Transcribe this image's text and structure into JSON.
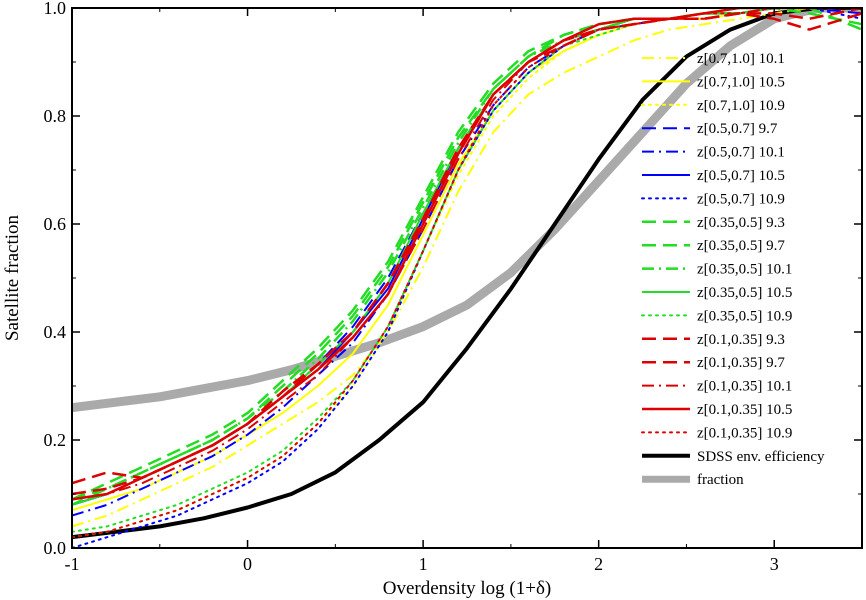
{
  "chart_data": {
    "type": "line",
    "title": "",
    "xlabel": "Overdensity log (1+δ)",
    "ylabel": "Satellite fraction",
    "xlim": [
      -1,
      3.5
    ],
    "ylim": [
      0,
      1
    ],
    "xticks": [
      -1,
      0,
      1,
      2,
      3
    ],
    "yticks": [
      0.0,
      0.2,
      0.4,
      0.6,
      0.8,
      1.0
    ],
    "ytick_labels": [
      "0.0",
      "0.2",
      "0.4",
      "0.6",
      "0.8",
      "1.0"
    ],
    "grid": false,
    "legend": "right",
    "series": [
      {
        "name": "z[0.7,1.0] 10.1",
        "color": "#ffff00",
        "dash": "dashdot",
        "width": 2,
        "x": [
          -1,
          -0.8,
          -0.6,
          -0.4,
          -0.2,
          0,
          0.2,
          0.4,
          0.6,
          0.8,
          1.0,
          1.2,
          1.4,
          1.6,
          1.8,
          2.0,
          2.2,
          2.4,
          2.6,
          2.8,
          3.0,
          3.2,
          3.5
        ],
        "y": [
          0.04,
          0.06,
          0.09,
          0.12,
          0.15,
          0.19,
          0.23,
          0.27,
          0.32,
          0.4,
          0.52,
          0.66,
          0.77,
          0.84,
          0.88,
          0.91,
          0.94,
          0.96,
          0.97,
          0.98,
          0.99,
          1.0,
          1.0
        ]
      },
      {
        "name": "z[0.7,1.0] 10.5",
        "color": "#ffff00",
        "dash": "solid",
        "width": 2,
        "x": [
          -1,
          -0.8,
          -0.6,
          -0.4,
          -0.2,
          0,
          0.2,
          0.4,
          0.6,
          0.8,
          1.0,
          1.2,
          1.4,
          1.6,
          1.8,
          2.0,
          2.2,
          2.4,
          2.6,
          2.8,
          3.0,
          3.2,
          3.5
        ],
        "y": [
          0.07,
          0.09,
          0.11,
          0.14,
          0.17,
          0.21,
          0.25,
          0.3,
          0.36,
          0.45,
          0.58,
          0.71,
          0.81,
          0.88,
          0.92,
          0.95,
          0.97,
          0.98,
          0.98,
          0.99,
          1.0,
          1.0,
          1.0
        ]
      },
      {
        "name": "z[0.7,1.0] 10.9",
        "color": "#ffff00",
        "dash": "dot",
        "width": 2,
        "x": [
          -1,
          -0.8,
          -0.6,
          -0.4,
          -0.2,
          0,
          0.2,
          0.4,
          0.6,
          0.8,
          1.0,
          1.2,
          1.4,
          1.6,
          1.8,
          2.0,
          2.2,
          2.4,
          2.6,
          2.8,
          3.0,
          3.2,
          3.5
        ],
        "y": [
          0.02,
          0.03,
          0.05,
          0.07,
          0.1,
          0.13,
          0.17,
          0.23,
          0.3,
          0.4,
          0.55,
          0.69,
          0.8,
          0.87,
          0.92,
          0.95,
          0.97,
          0.98,
          0.98,
          0.99,
          1.0,
          1.0,
          1.0
        ]
      },
      {
        "name": "z[0.5,0.7] 9.7",
        "color": "#0000ff",
        "dash": "dash",
        "width": 2,
        "x": [
          -1,
          -0.8,
          -0.6,
          -0.4,
          -0.2,
          0,
          0.2,
          0.4,
          0.6,
          0.8,
          1.0,
          1.2,
          1.4,
          1.6,
          1.8,
          2.0,
          2.2,
          2.4,
          2.6,
          2.8,
          3.0,
          3.2,
          3.5
        ],
        "y": [
          0.08,
          0.1,
          0.13,
          0.16,
          0.19,
          0.23,
          0.28,
          0.34,
          0.41,
          0.5,
          0.62,
          0.74,
          0.84,
          0.9,
          0.94,
          0.96,
          0.98,
          0.98,
          0.99,
          0.99,
          1.0,
          1.0,
          0.99
        ]
      },
      {
        "name": "z[0.5,0.7] 10.1",
        "color": "#0000ff",
        "dash": "dashdot",
        "width": 2,
        "x": [
          -1,
          -0.8,
          -0.6,
          -0.4,
          -0.2,
          0,
          0.2,
          0.4,
          0.6,
          0.8,
          1.0,
          1.2,
          1.4,
          1.6,
          1.8,
          2.0,
          2.2,
          2.4,
          2.6,
          2.8,
          3.0,
          3.2,
          3.5
        ],
        "y": [
          0.06,
          0.08,
          0.11,
          0.14,
          0.17,
          0.21,
          0.26,
          0.32,
          0.38,
          0.47,
          0.59,
          0.72,
          0.82,
          0.89,
          0.93,
          0.96,
          0.97,
          0.98,
          0.99,
          0.99,
          1.0,
          1.0,
          1.0
        ]
      },
      {
        "name": "z[0.5,0.7] 10.5",
        "color": "#0000ff",
        "dash": "solid",
        "width": 2,
        "x": [
          -1,
          -0.8,
          -0.6,
          -0.4,
          -0.2,
          0,
          0.2,
          0.4,
          0.6,
          0.8,
          1.0,
          1.2,
          1.4,
          1.6,
          1.8,
          2.0,
          2.2,
          2.4,
          2.6,
          2.8,
          3.0,
          3.2,
          3.5
        ],
        "y": [
          0.08,
          0.1,
          0.13,
          0.16,
          0.19,
          0.23,
          0.28,
          0.33,
          0.4,
          0.48,
          0.61,
          0.74,
          0.84,
          0.9,
          0.94,
          0.96,
          0.98,
          0.98,
          0.99,
          0.99,
          1.0,
          1.0,
          1.0
        ]
      },
      {
        "name": "z[0.5,0.7] 10.9",
        "color": "#0000ff",
        "dash": "dot",
        "width": 2,
        "x": [
          -1,
          -0.8,
          -0.6,
          -0.4,
          -0.2,
          0,
          0.2,
          0.4,
          0.6,
          0.8,
          1.0,
          1.2,
          1.4,
          1.6,
          1.8,
          2.0,
          2.2,
          2.4,
          2.6,
          2.8,
          3.0,
          3.2,
          3.5
        ],
        "y": [
          0.0,
          0.02,
          0.04,
          0.06,
          0.09,
          0.12,
          0.16,
          0.22,
          0.3,
          0.4,
          0.55,
          0.7,
          0.81,
          0.88,
          0.93,
          0.96,
          0.97,
          0.98,
          0.99,
          0.99,
          1.0,
          1.0,
          0.98
        ]
      },
      {
        "name": "z[0.35,0.5] 9.3",
        "color": "#22dd22",
        "dash": "dash",
        "width": 2.5,
        "x": [
          -1,
          -0.8,
          -0.6,
          -0.4,
          -0.2,
          0,
          0.2,
          0.4,
          0.6,
          0.8,
          1.0,
          1.2,
          1.4,
          1.6,
          1.8,
          2.0,
          2.2,
          2.4,
          2.6,
          2.8,
          3.0,
          3.2,
          3.5
        ],
        "y": [
          0.09,
          0.12,
          0.15,
          0.18,
          0.21,
          0.25,
          0.31,
          0.37,
          0.44,
          0.53,
          0.65,
          0.77,
          0.86,
          0.92,
          0.95,
          0.97,
          0.98,
          0.98,
          0.99,
          0.99,
          1.0,
          1.0,
          0.96
        ]
      },
      {
        "name": "z[0.35,0.5] 9.7",
        "color": "#22dd22",
        "dash": "dash",
        "width": 2.5,
        "x": [
          -1,
          -0.8,
          -0.6,
          -0.4,
          -0.2,
          0,
          0.2,
          0.4,
          0.6,
          0.8,
          1.0,
          1.2,
          1.4,
          1.6,
          1.8,
          2.0,
          2.2,
          2.4,
          2.6,
          2.8,
          3.0,
          3.2,
          3.5
        ],
        "y": [
          0.09,
          0.11,
          0.14,
          0.17,
          0.2,
          0.24,
          0.3,
          0.36,
          0.43,
          0.52,
          0.64,
          0.76,
          0.85,
          0.91,
          0.95,
          0.97,
          0.98,
          0.98,
          0.99,
          0.99,
          1.0,
          0.99,
          0.97
        ]
      },
      {
        "name": "z[0.35,0.5] 10.1",
        "color": "#22dd22",
        "dash": "dashdot",
        "width": 2.5,
        "x": [
          -1,
          -0.8,
          -0.6,
          -0.4,
          -0.2,
          0,
          0.2,
          0.4,
          0.6,
          0.8,
          1.0,
          1.2,
          1.4,
          1.6,
          1.8,
          2.0,
          2.2,
          2.4,
          2.6,
          2.8,
          3.0,
          3.2,
          3.5
        ],
        "y": [
          0.08,
          0.11,
          0.14,
          0.17,
          0.2,
          0.24,
          0.29,
          0.35,
          0.42,
          0.51,
          0.63,
          0.75,
          0.85,
          0.91,
          0.94,
          0.96,
          0.98,
          0.98,
          0.99,
          0.99,
          1.0,
          1.0,
          1.0
        ]
      },
      {
        "name": "z[0.35,0.5] 10.5",
        "color": "#22dd22",
        "dash": "solid",
        "width": 2,
        "x": [
          -1,
          -0.8,
          -0.6,
          -0.4,
          -0.2,
          0,
          0.2,
          0.4,
          0.6,
          0.8,
          1.0,
          1.2,
          1.4,
          1.6,
          1.8,
          2.0,
          2.2,
          2.4,
          2.6,
          2.8,
          3.0,
          3.2,
          3.5
        ],
        "y": [
          0.08,
          0.1,
          0.13,
          0.16,
          0.19,
          0.23,
          0.28,
          0.34,
          0.4,
          0.49,
          0.62,
          0.74,
          0.84,
          0.9,
          0.94,
          0.96,
          0.98,
          0.98,
          0.99,
          0.99,
          1.0,
          1.0,
          1.0
        ]
      },
      {
        "name": "z[0.35,0.5] 10.9",
        "color": "#22dd22",
        "dash": "dot",
        "width": 2,
        "x": [
          -1,
          -0.8,
          -0.6,
          -0.4,
          -0.2,
          0,
          0.2,
          0.4,
          0.6,
          0.8,
          1.0,
          1.2,
          1.4,
          1.6,
          1.8,
          2.0,
          2.2,
          2.4,
          2.6,
          2.8,
          3.0,
          3.2,
          3.5
        ],
        "y": [
          0.03,
          0.04,
          0.06,
          0.08,
          0.11,
          0.14,
          0.18,
          0.24,
          0.31,
          0.41,
          0.55,
          0.7,
          0.81,
          0.88,
          0.93,
          0.95,
          0.97,
          0.98,
          0.99,
          0.99,
          1.0,
          1.0,
          1.0
        ]
      },
      {
        "name": "z[0.1,0.35] 9.3",
        "color": "#dd0000",
        "dash": "dash",
        "width": 2.5,
        "x": [
          -1,
          -0.8,
          -0.6,
          -0.4,
          -0.2,
          0,
          0.2,
          0.4,
          0.6,
          0.8,
          1.0,
          1.2,
          1.4,
          1.6,
          1.8,
          2.0,
          2.2,
          2.4,
          2.6,
          2.8,
          3.0,
          3.2,
          3.5
        ],
        "y": [
          0.12,
          0.14,
          0.13,
          0.16,
          0.19,
          0.23,
          0.29,
          0.34,
          0.4,
          0.49,
          0.61,
          0.74,
          0.84,
          0.9,
          0.94,
          0.96,
          0.97,
          0.98,
          0.98,
          0.99,
          0.98,
          0.96,
          0.99
        ]
      },
      {
        "name": "z[0.1,0.35] 9.7",
        "color": "#dd0000",
        "dash": "dash",
        "width": 2.5,
        "x": [
          -1,
          -0.8,
          -0.6,
          -0.4,
          -0.2,
          0,
          0.2,
          0.4,
          0.6,
          0.8,
          1.0,
          1.2,
          1.4,
          1.6,
          1.8,
          2.0,
          2.2,
          2.4,
          2.6,
          2.8,
          3.0,
          3.2,
          3.5
        ],
        "y": [
          0.1,
          0.11,
          0.13,
          0.16,
          0.19,
          0.23,
          0.28,
          0.34,
          0.4,
          0.49,
          0.6,
          0.73,
          0.84,
          0.9,
          0.93,
          0.96,
          0.97,
          0.98,
          0.98,
          0.99,
          0.99,
          0.98,
          1.0
        ]
      },
      {
        "name": "z[0.1,0.35] 10.1",
        "color": "#dd0000",
        "dash": "dashdot",
        "width": 2,
        "x": [
          -1,
          -0.8,
          -0.6,
          -0.4,
          -0.2,
          0,
          0.2,
          0.4,
          0.6,
          0.8,
          1.0,
          1.2,
          1.4,
          1.6,
          1.8,
          2.0,
          2.2,
          2.4,
          2.6,
          2.8,
          3.0,
          3.2,
          3.5
        ],
        "y": [
          0.09,
          0.1,
          0.12,
          0.15,
          0.18,
          0.22,
          0.27,
          0.32,
          0.39,
          0.47,
          0.59,
          0.72,
          0.83,
          0.9,
          0.94,
          0.96,
          0.97,
          0.98,
          0.98,
          0.99,
          1.0,
          1.0,
          1.0
        ]
      },
      {
        "name": "z[0.1,0.35] 10.5",
        "color": "#dd0000",
        "dash": "solid",
        "width": 2.5,
        "x": [
          -1,
          -0.8,
          -0.6,
          -0.4,
          -0.2,
          0,
          0.2,
          0.4,
          0.6,
          0.8,
          1.0,
          1.2,
          1.4,
          1.6,
          1.8,
          2.0,
          2.2,
          2.4,
          2.6,
          2.8,
          3.0,
          3.2,
          3.5
        ],
        "y": [
          0.09,
          0.1,
          0.13,
          0.16,
          0.19,
          0.23,
          0.28,
          0.33,
          0.39,
          0.47,
          0.6,
          0.73,
          0.84,
          0.9,
          0.94,
          0.97,
          0.98,
          0.98,
          0.99,
          1.0,
          1.0,
          1.0,
          1.0
        ]
      },
      {
        "name": "z[0.1,0.35] 10.9",
        "color": "#dd0000",
        "dash": "dot",
        "width": 2,
        "x": [
          -1,
          -0.8,
          -0.6,
          -0.4,
          -0.2,
          0,
          0.2,
          0.4,
          0.6,
          0.8,
          1.0,
          1.2,
          1.4,
          1.6,
          1.8,
          2.0,
          2.2,
          2.4,
          2.6,
          2.8,
          3.0,
          3.2,
          3.5
        ],
        "y": [
          0.02,
          0.03,
          0.05,
          0.07,
          0.1,
          0.13,
          0.17,
          0.23,
          0.31,
          0.41,
          0.55,
          0.7,
          0.82,
          0.89,
          0.93,
          0.96,
          0.97,
          0.98,
          0.99,
          0.99,
          1.0,
          1.0,
          1.0
        ]
      },
      {
        "name": "SDSS env. efficiency",
        "color": "#000000",
        "dash": "solid",
        "width": 4,
        "x": [
          -1,
          -0.75,
          -0.5,
          -0.25,
          0,
          0.25,
          0.5,
          0.75,
          1.0,
          1.25,
          1.5,
          1.75,
          2.0,
          2.25,
          2.5,
          2.75,
          3.0,
          3.25,
          3.5
        ],
        "y": [
          0.02,
          0.03,
          0.04,
          0.055,
          0.075,
          0.1,
          0.14,
          0.2,
          0.27,
          0.37,
          0.48,
          0.6,
          0.72,
          0.83,
          0.91,
          0.96,
          0.99,
          1.0,
          1.0
        ]
      },
      {
        "name": "fraction",
        "color": "#aaaaaa",
        "dash": "solid",
        "width": 9,
        "x": [
          -1,
          -0.75,
          -0.5,
          -0.25,
          0,
          0.25,
          0.5,
          0.75,
          1.0,
          1.25,
          1.5,
          1.75,
          2.0,
          2.25,
          2.5,
          2.75,
          3.0,
          3.25,
          3.5
        ],
        "y": [
          0.26,
          0.27,
          0.28,
          0.295,
          0.31,
          0.33,
          0.355,
          0.38,
          0.41,
          0.45,
          0.51,
          0.59,
          0.68,
          0.77,
          0.86,
          0.93,
          0.98,
          1.0,
          1.0
        ]
      }
    ]
  }
}
